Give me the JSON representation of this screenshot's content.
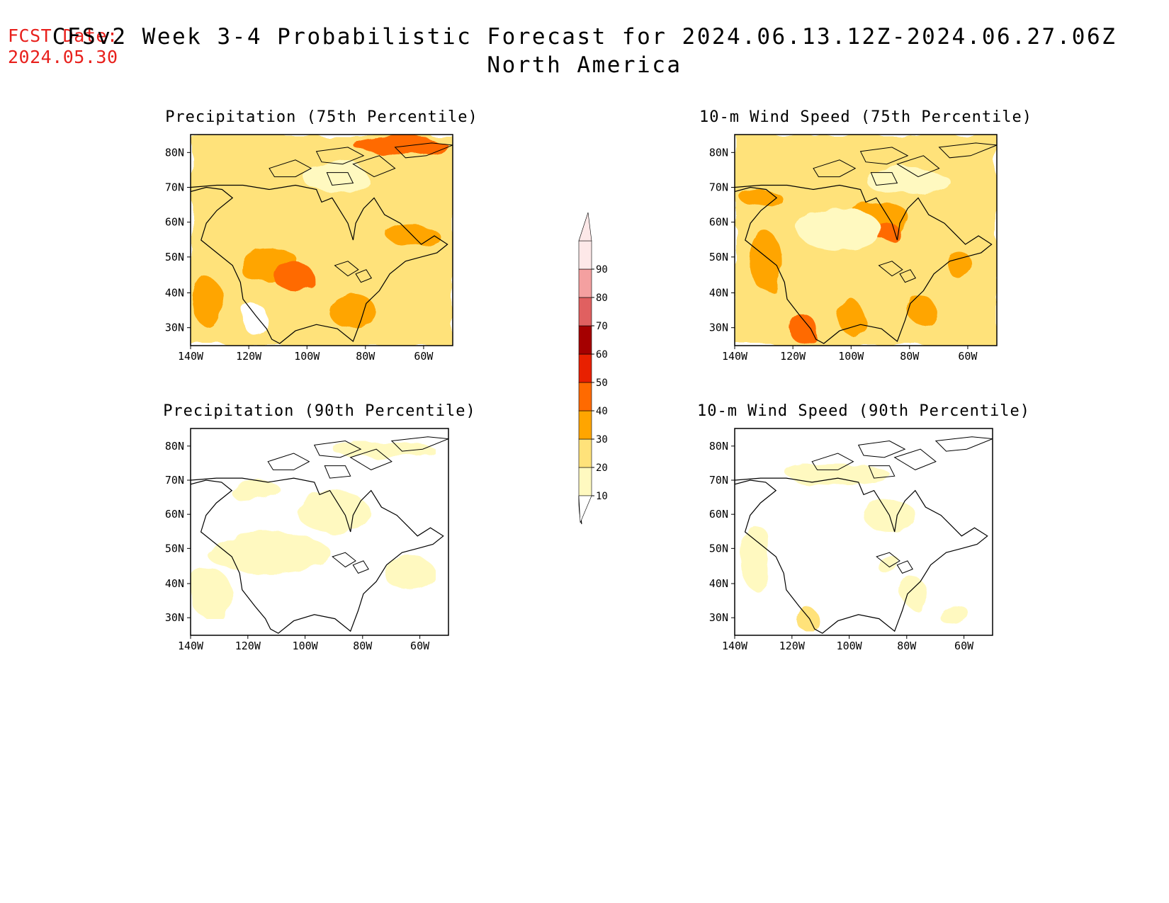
{
  "header": {
    "fcst_label": "FCST Date:",
    "fcst_date": "2024.05.30",
    "title_line1": "CFSv2 Week 3-4 Probabilistic Forecast for 2024.06.13.12Z-2024.06.27.06Z",
    "title_line2": "North America"
  },
  "panels": [
    {
      "id": "precip-75",
      "title": "Precipitation (75th Percentile)",
      "intensity": "high"
    },
    {
      "id": "wind-75",
      "title": "10-m Wind Speed (75th Percentile)",
      "intensity": "high"
    },
    {
      "id": "precip-90",
      "title": "Precipitation (90th Percentile)",
      "intensity": "low"
    },
    {
      "id": "wind-90",
      "title": "10-m Wind Speed (90th Percentile)",
      "intensity": "low"
    }
  ],
  "axes": {
    "lon_labels": [
      "140W",
      "120W",
      "100W",
      "80W",
      "60W"
    ],
    "lat_labels": [
      "80N",
      "70N",
      "60N",
      "50N",
      "40N",
      "30N"
    ]
  },
  "colorbar": {
    "levels": [
      "10",
      "20",
      "30",
      "40",
      "50",
      "60",
      "70",
      "80",
      "90"
    ],
    "colors": [
      "#fff9c0",
      "#ffe27a",
      "#ffa500",
      "#ff6a00",
      "#e82000",
      "#a50000",
      "#e06060",
      "#f4a0a0",
      "#fde8e8"
    ]
  }
}
